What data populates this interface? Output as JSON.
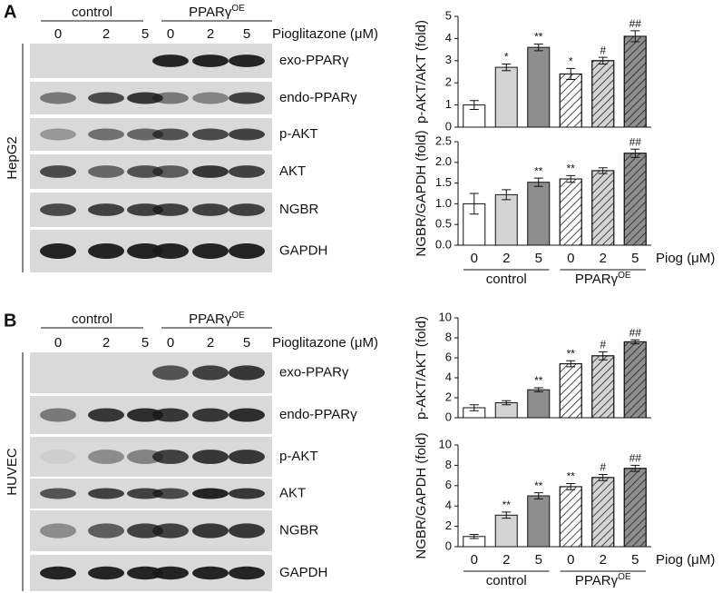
{
  "blots": [
    {
      "panel": "A",
      "cell_line": "HepG2",
      "groups": [
        {
          "name": "control"
        },
        {
          "name": "PPARγ",
          "sup": "OE"
        }
      ],
      "treatment": "Pioglitazone (μM)",
      "lanes": [
        "0",
        "2",
        "5",
        "0",
        "2",
        "5"
      ],
      "rows": [
        "exo-PPARγ",
        "endo-PPARγ",
        "p-AKT",
        "AKT",
        "NGBR",
        "GAPDH"
      ]
    },
    {
      "panel": "B",
      "cell_line": "HUVEC",
      "groups": [
        {
          "name": "control"
        },
        {
          "name": "PPARγ",
          "sup": "OE"
        }
      ],
      "treatment": "Pioglitazone (μM)",
      "lanes": [
        "0",
        "2",
        "5",
        "0",
        "2",
        "5"
      ],
      "rows": [
        "exo-PPARγ",
        "endo-PPARγ",
        "p-AKT",
        "AKT",
        "NGBR",
        "GAPDH"
      ]
    }
  ],
  "chart_data": [
    {
      "type": "bar",
      "ylabel": "p-AKT/AKT (fold)",
      "ylim": [
        0,
        5
      ],
      "yticks": [
        0,
        1,
        2,
        3,
        4,
        5
      ],
      "values": [
        1.0,
        2.7,
        3.6,
        2.4,
        3.0,
        4.1
      ],
      "errors": [
        0.2,
        0.15,
        0.15,
        0.25,
        0.15,
        0.25
      ],
      "annotations": [
        null,
        "*",
        "**",
        "*",
        "#",
        "##"
      ],
      "colors": [
        "#ffffff",
        "#d4d4d4",
        "#8e8e8e",
        "#ffffff",
        "#d4d4d4",
        "#8e8e8e"
      ],
      "hatch": [
        false,
        false,
        false,
        true,
        true,
        true
      ]
    },
    {
      "type": "bar",
      "ylabel": "NGBR/GAPDH (fold)",
      "ylim": [
        0,
        2.5
      ],
      "yticks": [
        {
          "value": 0,
          "label": "0.0"
        },
        0.5,
        {
          "value": 1,
          "label": "1.0"
        },
        1.5,
        {
          "value": 2,
          "label": "2.0"
        },
        2.5
      ],
      "values": [
        1.0,
        1.22,
        1.52,
        1.6,
        1.8,
        2.22
      ],
      "errors": [
        0.25,
        0.12,
        0.1,
        0.08,
        0.07,
        0.1
      ],
      "annotations": [
        null,
        null,
        "**",
        "**",
        null,
        "##"
      ],
      "colors": [
        "#ffffff",
        "#d4d4d4",
        "#8e8e8e",
        "#ffffff",
        "#d4d4d4",
        "#8e8e8e"
      ],
      "hatch": [
        false,
        false,
        false,
        true,
        true,
        true
      ],
      "categories": [
        "0",
        "2",
        "5",
        "0",
        "2",
        "5"
      ],
      "xlabel": "Piog (μM)",
      "groups": [
        {
          "name": "control"
        },
        {
          "name": "PPARγ",
          "sup": "OE"
        }
      ]
    },
    {
      "type": "bar",
      "ylabel": "p-AKT/AKT (fold)",
      "ylim": [
        0,
        10
      ],
      "yticks": [
        0,
        2,
        4,
        6,
        8,
        10
      ],
      "values": [
        1.0,
        1.5,
        2.8,
        5.4,
        6.2,
        7.6
      ],
      "errors": [
        0.3,
        0.2,
        0.2,
        0.3,
        0.4,
        0.2
      ],
      "annotations": [
        null,
        null,
        "**",
        "**",
        "#",
        "##"
      ],
      "colors": [
        "#ffffff",
        "#d4d4d4",
        "#8e8e8e",
        "#ffffff",
        "#d4d4d4",
        "#8e8e8e"
      ],
      "hatch": [
        false,
        false,
        false,
        true,
        true,
        true
      ]
    },
    {
      "type": "bar",
      "ylabel": "NGBR/GAPDH (fold)",
      "ylim": [
        0,
        10
      ],
      "yticks": [
        0,
        2,
        4,
        6,
        8,
        10
      ],
      "values": [
        1.0,
        3.1,
        5.0,
        5.9,
        6.8,
        7.7
      ],
      "errors": [
        0.2,
        0.3,
        0.3,
        0.3,
        0.3,
        0.3
      ],
      "annotations": [
        null,
        "**",
        "**",
        "**",
        "#",
        "##"
      ],
      "colors": [
        "#ffffff",
        "#d4d4d4",
        "#8e8e8e",
        "#ffffff",
        "#d4d4d4",
        "#8e8e8e"
      ],
      "hatch": [
        false,
        false,
        false,
        true,
        true,
        true
      ],
      "categories": [
        "0",
        "2",
        "5",
        "0",
        "2",
        "5"
      ],
      "xlabel": "Piog (μM)",
      "groups": [
        {
          "name": "control"
        },
        {
          "name": "PPARγ",
          "sup": "OE"
        }
      ]
    }
  ]
}
